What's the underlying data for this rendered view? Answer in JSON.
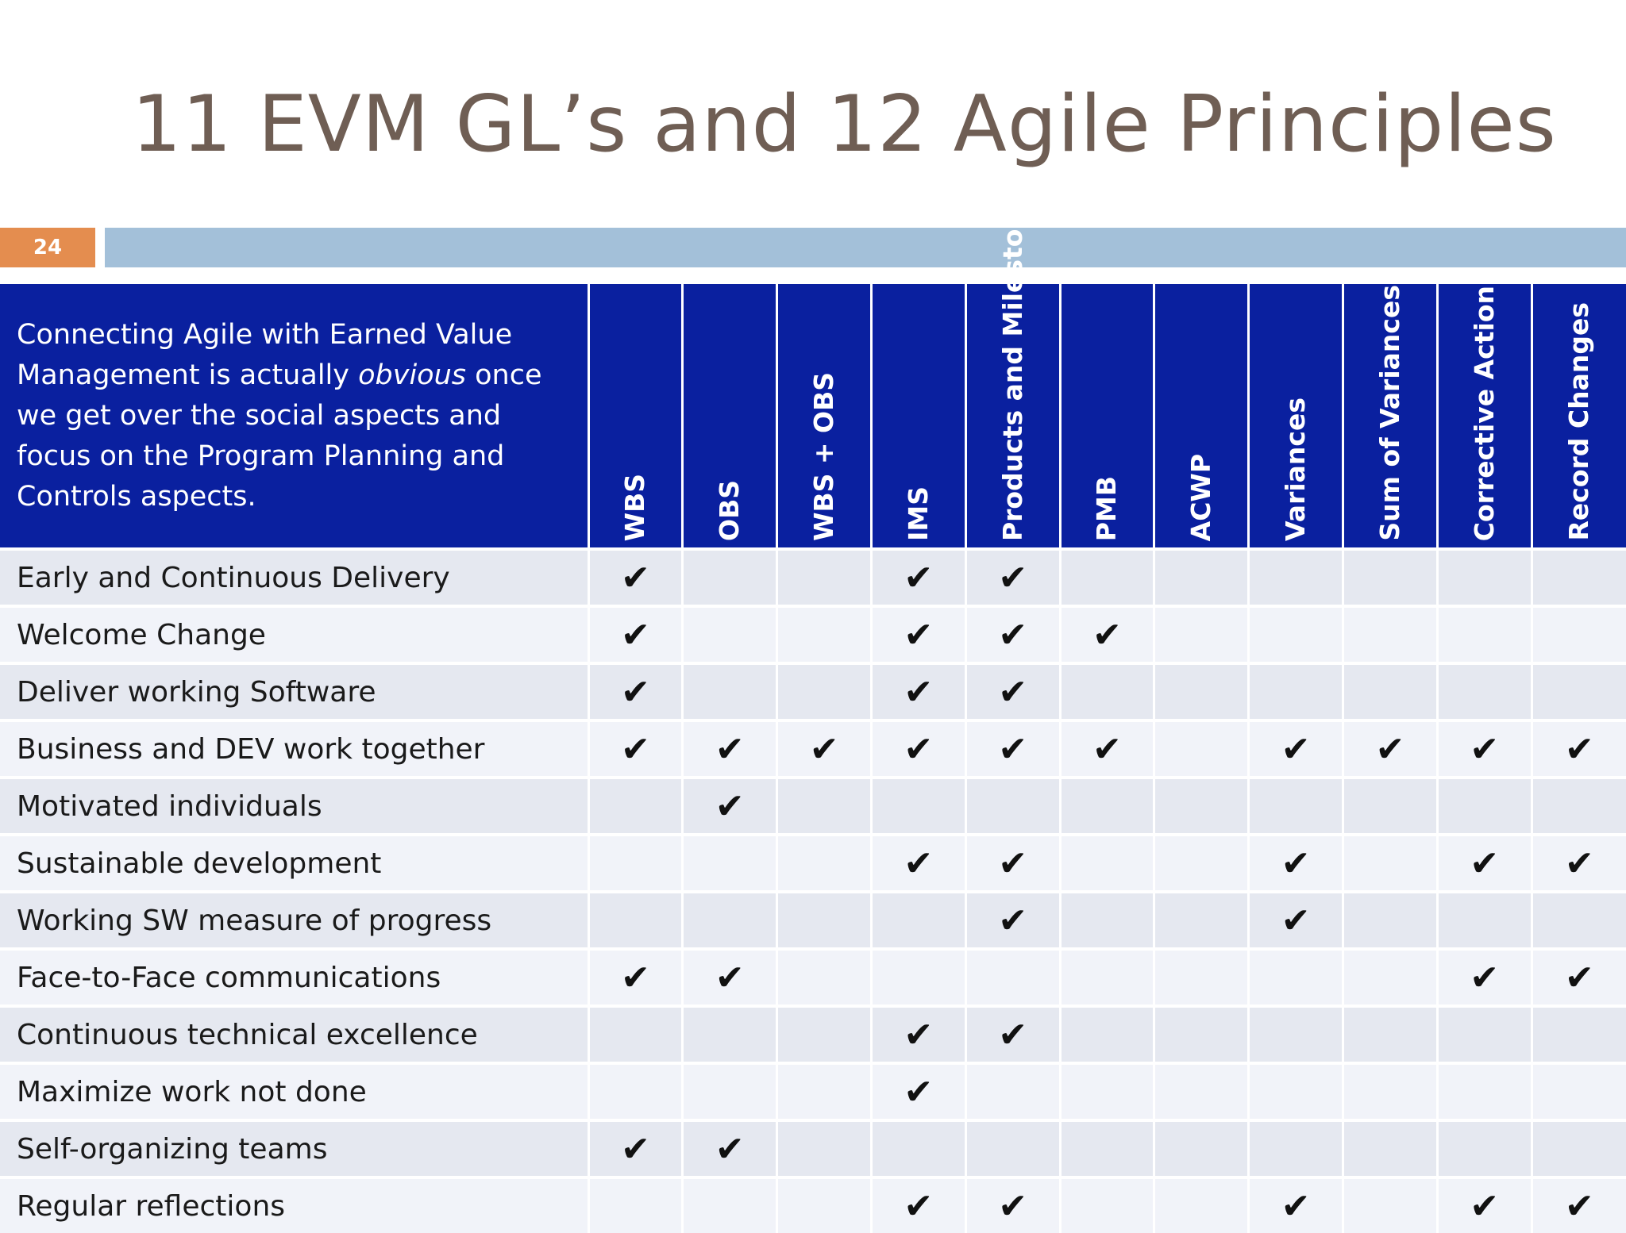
{
  "slide": {
    "title": "11 EVM GL’s and 12 Agile Principles",
    "number": "24"
  },
  "table": {
    "intro_before": "Connecting Agile with Earned Value Management is actually ",
    "intro_emph": "obvious",
    "intro_after": " once we get over the social aspects and focus on the Program Planning and Controls aspects.",
    "check_glyph": "✔",
    "columns": [
      "WBS",
      "OBS",
      "WBS + OBS",
      "IMS",
      "Products and Milestones",
      "PMB",
      "ACWP",
      "Variances",
      "Sum of Variances",
      "Corrective Action",
      "Record Changes"
    ],
    "rows": [
      {
        "label": "Early and Continuous Delivery",
        "checks": [
          true,
          false,
          false,
          true,
          true,
          false,
          false,
          false,
          false,
          false,
          false
        ]
      },
      {
        "label": "Welcome Change",
        "checks": [
          true,
          false,
          false,
          true,
          true,
          true,
          false,
          false,
          false,
          false,
          false
        ]
      },
      {
        "label": "Deliver working Software",
        "checks": [
          true,
          false,
          false,
          true,
          true,
          false,
          false,
          false,
          false,
          false,
          false
        ]
      },
      {
        "label": "Business and DEV work together",
        "checks": [
          true,
          true,
          true,
          true,
          true,
          true,
          false,
          true,
          true,
          true,
          true
        ]
      },
      {
        "label": "Motivated individuals",
        "checks": [
          false,
          true,
          false,
          false,
          false,
          false,
          false,
          false,
          false,
          false,
          false
        ]
      },
      {
        "label": "Sustainable development",
        "checks": [
          false,
          false,
          false,
          true,
          true,
          false,
          false,
          true,
          false,
          true,
          true
        ]
      },
      {
        "label": "Working SW measure of progress",
        "checks": [
          false,
          false,
          false,
          false,
          true,
          false,
          false,
          true,
          false,
          false,
          false
        ]
      },
      {
        "label": "Face-to-Face communications",
        "checks": [
          true,
          true,
          false,
          false,
          false,
          false,
          false,
          false,
          false,
          true,
          true
        ]
      },
      {
        "label": "Continuous technical excellence",
        "checks": [
          false,
          false,
          false,
          true,
          true,
          false,
          false,
          false,
          false,
          false,
          false
        ]
      },
      {
        "label": "Maximize work not done",
        "checks": [
          false,
          false,
          false,
          true,
          false,
          false,
          false,
          false,
          false,
          false,
          false
        ]
      },
      {
        "label": "Self-organizing teams",
        "checks": [
          true,
          true,
          false,
          false,
          false,
          false,
          false,
          false,
          false,
          false,
          false
        ]
      },
      {
        "label": "Regular reflections",
        "checks": [
          false,
          false,
          false,
          true,
          true,
          false,
          false,
          true,
          false,
          true,
          true
        ]
      }
    ]
  }
}
